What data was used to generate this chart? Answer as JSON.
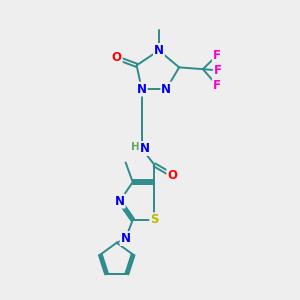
{
  "background_color": "#eeeeee",
  "atom_colors": {
    "C": "#2e8b8b",
    "N": "#0000ee",
    "O": "#ff0000",
    "S": "#bbbb00",
    "F": "#ff00cc",
    "H": "#5aaa5a"
  },
  "bond_color": "#2e8b8b",
  "font_size_atom": 8.5,
  "lw": 1.4
}
